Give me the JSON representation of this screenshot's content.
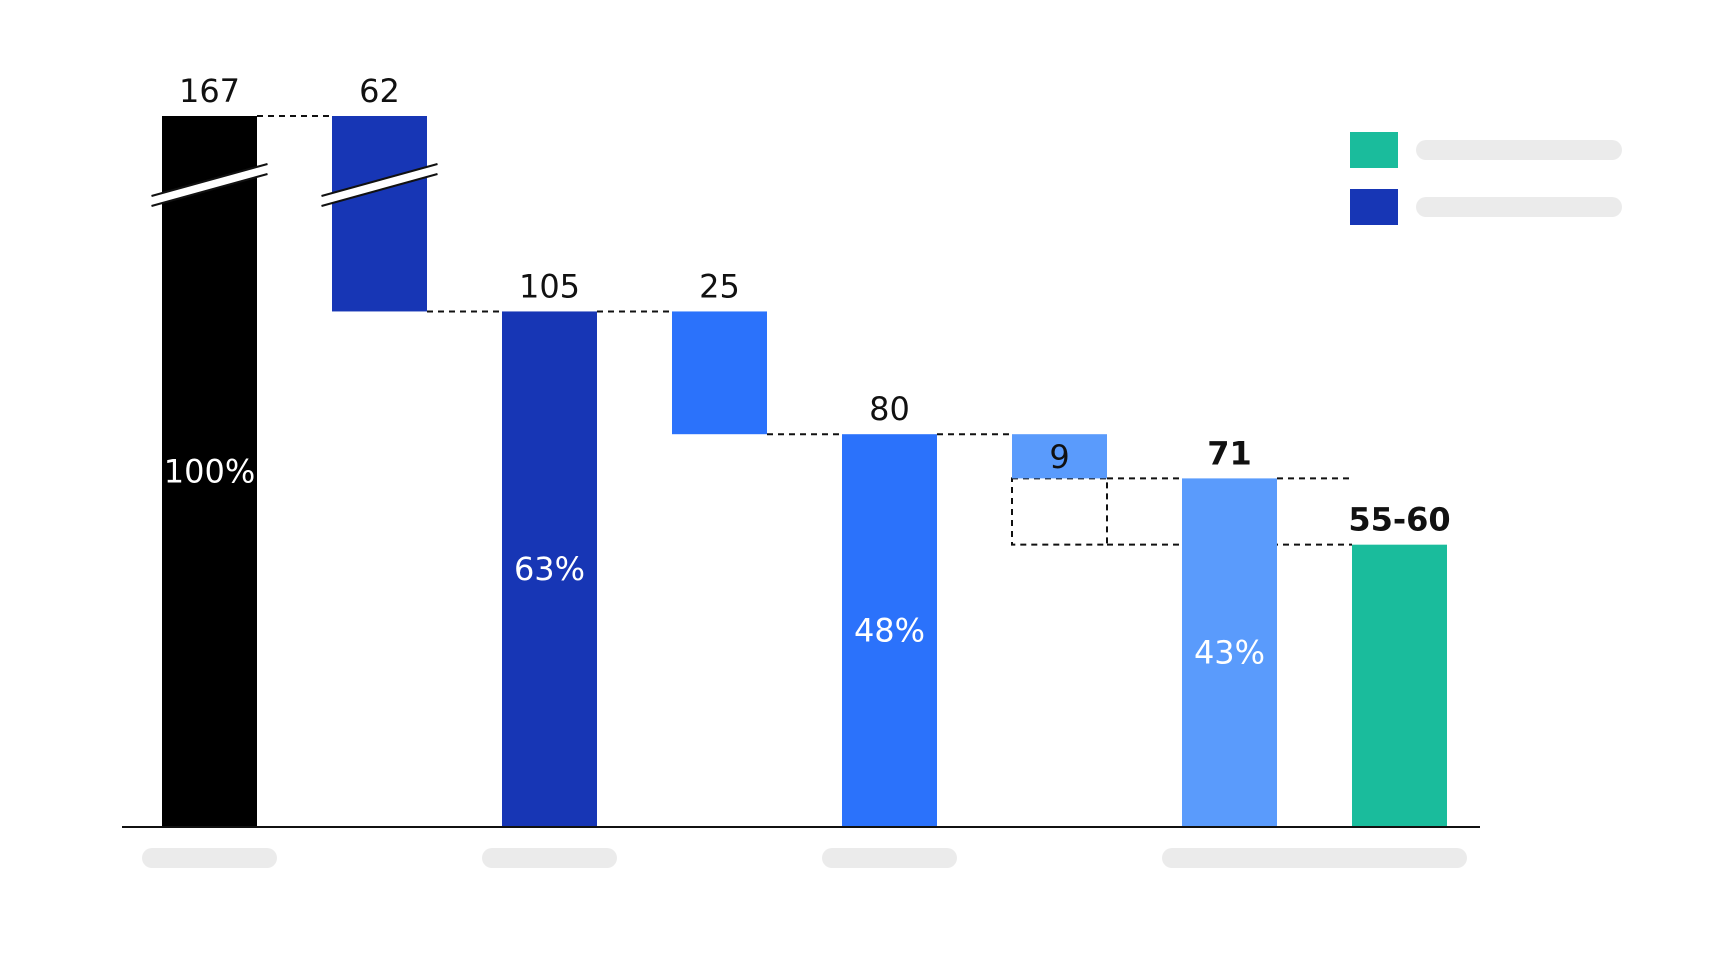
{
  "chart_data": {
    "type": "bar",
    "subtype": "waterfall",
    "title": "",
    "xlabel": "",
    "ylabel": "",
    "axis_break_on_first_two_bars": true,
    "category_labels_visible": false,
    "legend_labels_visible": false,
    "legend_placement": "top-right",
    "grid": false,
    "bars": [
      {
        "label": "167",
        "value": 167,
        "kind": "total",
        "percent_label": "100%",
        "color": "#000000",
        "bold": false
      },
      {
        "label": "62",
        "value": 62,
        "kind": "decrease",
        "percent_label": "",
        "color": "#1736b5",
        "bold": false
      },
      {
        "label": "105",
        "value": 105,
        "kind": "total",
        "percent_label": "63%",
        "color": "#1736b5",
        "bold": false
      },
      {
        "label": "25",
        "value": 25,
        "kind": "decrease",
        "percent_label": "",
        "color": "#2b72fb",
        "bold": false
      },
      {
        "label": "80",
        "value": 80,
        "kind": "total",
        "percent_label": "48%",
        "color": "#2b72fb",
        "bold": false
      },
      {
        "label": "9",
        "value": 9,
        "kind": "decrease",
        "percent_label": "",
        "color": "#5a9bfc",
        "bold": false
      },
      {
        "label": "71",
        "value": 71,
        "kind": "total",
        "percent_label": "43%",
        "color": "#5a9bfc",
        "bold": true
      },
      {
        "label": "55-60",
        "value": 57.5,
        "range": [
          55,
          60
        ],
        "kind": "total",
        "percent_label": "",
        "color": "#1abc9c",
        "bold": true
      }
    ],
    "legend": [
      {
        "color": "#1abc9c",
        "label": ""
      },
      {
        "color": "#1736b5",
        "label": ""
      }
    ],
    "category_placeholders": 4,
    "colors": {
      "axis": "#111111",
      "placeholder": "#ebebeb",
      "connector": "#111111"
    }
  }
}
